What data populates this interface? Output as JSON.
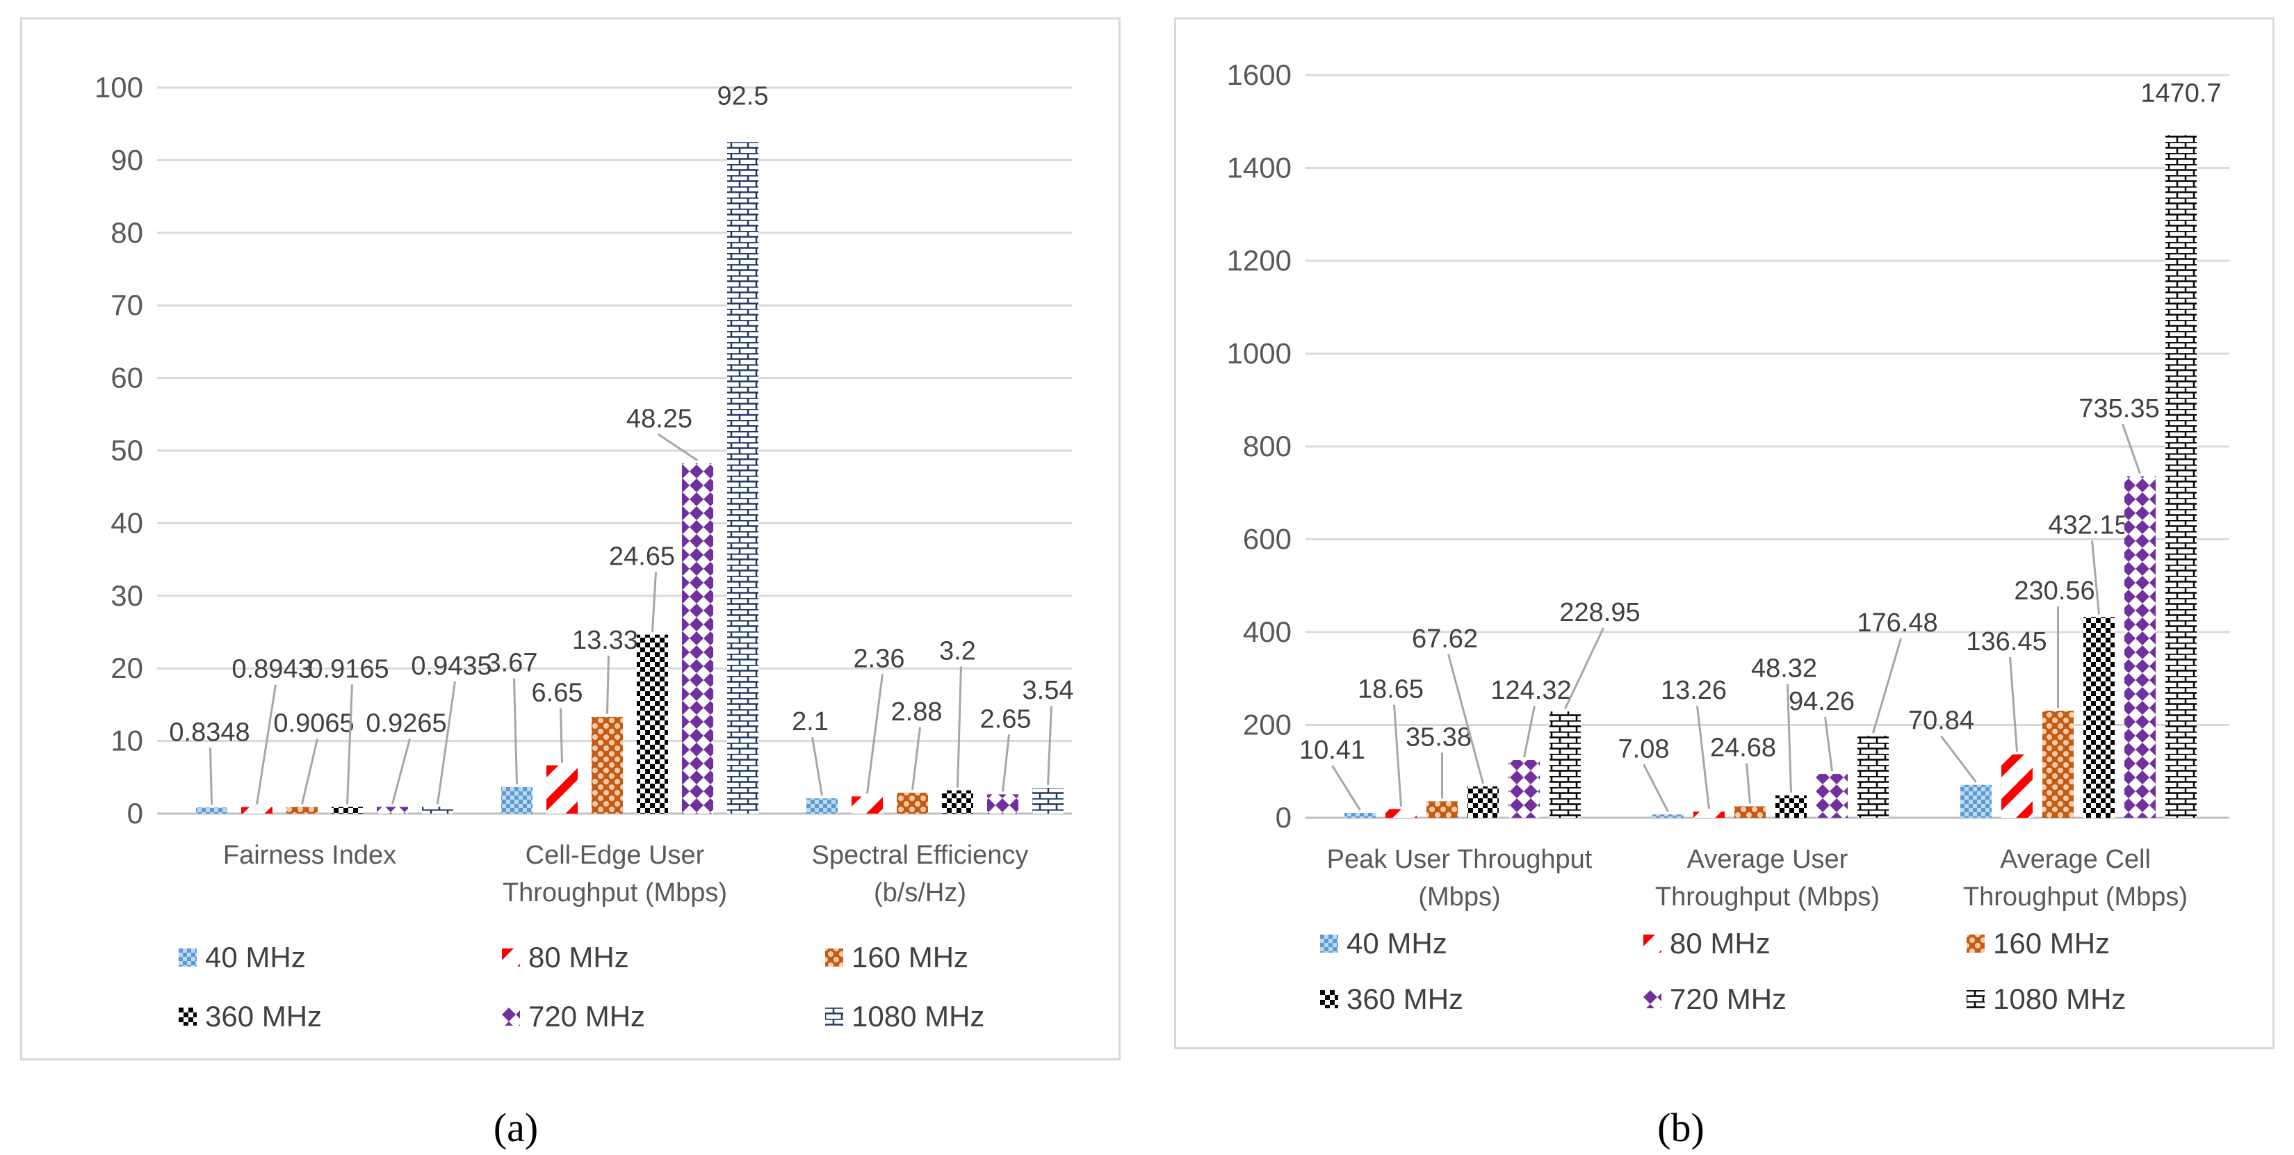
{
  "captions": [
    "(a)",
    "(b)"
  ],
  "series": [
    {
      "name": "40 MHz",
      "color": "#5b9bd5",
      "pattern": "checker"
    },
    {
      "name": "80 MHz",
      "color": "#ff0000",
      "pattern": "stripes"
    },
    {
      "name": "160 MHz",
      "color": "#c55a11",
      "pattern": "dots"
    },
    {
      "name": "360 MHz",
      "color": "#000000",
      "pattern": "bigchecker"
    },
    {
      "name": "720 MHz",
      "color": "#7030a0",
      "pattern": "diamond"
    },
    {
      "name": "1080 MHz",
      "color": "#203864",
      "pattern": "brick"
    }
  ],
  "chart_data": [
    {
      "type": "bar",
      "title": "",
      "caption": "(a)",
      "categories": [
        [
          "Fairness Index"
        ],
        [
          "Cell-Edge User",
          "Throughput (Mbps)"
        ],
        [
          "Spectral Efficiency",
          "(b/s/Hz)"
        ]
      ],
      "ylim": [
        0,
        100
      ],
      "yticks": [
        0,
        10,
        20,
        30,
        40,
        50,
        60,
        70,
        80,
        90,
        100
      ],
      "series": [
        {
          "name": "40 MHz",
          "values": [
            0.8348,
            3.67,
            2.1
          ]
        },
        {
          "name": "80 MHz",
          "values": [
            0.8943,
            6.65,
            2.36
          ]
        },
        {
          "name": "160 MHz",
          "values": [
            0.9065,
            13.33,
            2.88
          ]
        },
        {
          "name": "360 MHz",
          "values": [
            0.9165,
            24.65,
            3.2
          ]
        },
        {
          "name": "720 MHz",
          "values": [
            0.9265,
            48.25,
            2.65
          ]
        },
        {
          "name": "1080 MHz",
          "values": [
            0.9435,
            92.5,
            3.54
          ]
        }
      ],
      "labels": [
        [
          "0.8348",
          "3.67",
          "2.1"
        ],
        [
          "0.8943",
          "6.65",
          "2.36"
        ],
        [
          "0.9065",
          "13.33",
          "2.88"
        ],
        [
          "0.9165",
          "24.65",
          "3.2"
        ],
        [
          "0.9265",
          "48.25",
          "2.65"
        ],
        [
          "0.9435",
          "92.5",
          "3.54"
        ]
      ]
    },
    {
      "type": "bar",
      "title": "",
      "caption": "(b)",
      "categories": [
        [
          "Peak User Throughput",
          "(Mbps)"
        ],
        [
          "Average User",
          "Throughput (Mbps)"
        ],
        [
          "Average Cell",
          "Throughput (Mbps)"
        ]
      ],
      "ylim": [
        0,
        1600
      ],
      "yticks": [
        0,
        200,
        400,
        600,
        800,
        1000,
        1200,
        1400,
        1600
      ],
      "series": [
        {
          "name": "40 MHz",
          "values": [
            10.41,
            7.08,
            70.84
          ]
        },
        {
          "name": "80 MHz",
          "values": [
            18.65,
            13.26,
            136.45
          ]
        },
        {
          "name": "160 MHz",
          "values": [
            35.38,
            24.68,
            230.56
          ]
        },
        {
          "name": "360 MHz",
          "values": [
            67.62,
            48.32,
            432.15
          ]
        },
        {
          "name": "720 MHz",
          "values": [
            124.32,
            94.26,
            735.35
          ]
        },
        {
          "name": "1080 MHz",
          "values": [
            228.95,
            176.48,
            1470.7
          ]
        }
      ],
      "labels": [
        [
          "10.41",
          "7.08",
          "70.84"
        ],
        [
          "18.65",
          "13.26",
          "136.45"
        ],
        [
          "35.38",
          "24.68",
          "230.56"
        ],
        [
          "67.62",
          "48.32",
          "432.15"
        ],
        [
          "124.32",
          "94.26",
          "735.35"
        ],
        [
          "228.95",
          "176.48",
          "1470.7"
        ]
      ]
    }
  ]
}
